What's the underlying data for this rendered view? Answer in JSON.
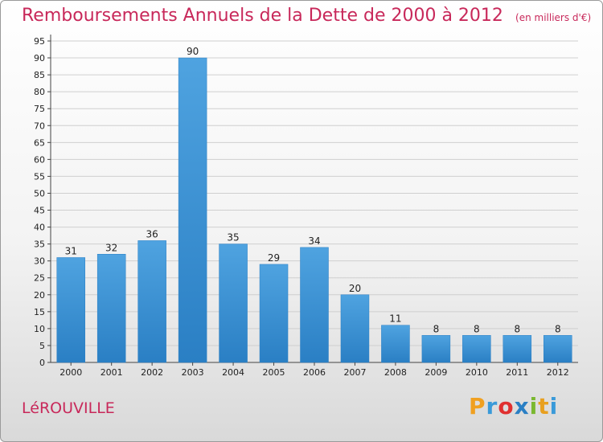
{
  "chart_data": {
    "type": "bar",
    "title": "Remboursements Annuels de la Dette de 2000 à 2012",
    "subtitle": "(en milliers d'€)",
    "categories": [
      "2000",
      "2001",
      "2002",
      "2003",
      "2004",
      "2005",
      "2006",
      "2007",
      "2008",
      "2009",
      "2010",
      "2011",
      "2012"
    ],
    "values": [
      31,
      32,
      36,
      90,
      35,
      29,
      34,
      20,
      11,
      8,
      8,
      8,
      8
    ],
    "ylim": [
      0,
      95
    ],
    "yticks": [
      0,
      5,
      10,
      15,
      20,
      25,
      30,
      35,
      40,
      45,
      50,
      55,
      60,
      65,
      70,
      75,
      80,
      85,
      90,
      95
    ],
    "grid": true,
    "bar_color": "#4fa3e0",
    "bar_color_dark": "#2a7fc4"
  },
  "footer": {
    "commune": "LéROUVILLE",
    "logo_letters": [
      "P",
      "r",
      "o",
      "x",
      "i",
      "t",
      "i"
    ],
    "logo_colors": [
      "#f0a020",
      "#3a9ad9",
      "#e03030",
      "#2a7fc4",
      "#7ab830",
      "#e8a020",
      "#3a9ad9"
    ]
  }
}
